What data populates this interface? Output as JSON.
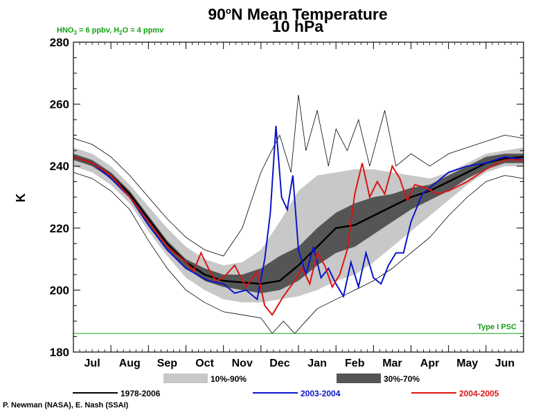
{
  "header": {
    "title_main": "90",
    "title_deg": "o",
    "title_rest": "N Mean Temperature",
    "subtitle": "10 hPa",
    "chem_note": {
      "part1": "HNO",
      "sub1": "3",
      "part2": " = 6 ppbv, H",
      "sub2": "2",
      "part3": "O = 4 ppmv"
    }
  },
  "credit": "P. Newman (NASA), E. Nash (SSAI)",
  "colors": {
    "band_10_90": "#c8c8c8",
    "band_30_70": "#555555",
    "climatology": "#000000",
    "series_2003_2004": "#0a14c8",
    "series_2004_2005": "#dc1414",
    "psc_line": "#12a012"
  },
  "chart_data": {
    "type": "line",
    "title": "90°N Mean Temperature",
    "subtitle": "10 hPa",
    "ylabel": "K",
    "xlabel": "",
    "ylim": [
      180,
      280
    ],
    "yticks": [
      180,
      200,
      220,
      240,
      260,
      280
    ],
    "x_categories": [
      "Jul",
      "Aug",
      "Sep",
      "Oct",
      "Nov",
      "Dec",
      "Jan",
      "Feb",
      "Mar",
      "Apr",
      "May",
      "Jun"
    ],
    "x_unit": "month index (0 = start of Jul, 12 = end of Jun)",
    "reference_line": {
      "label": "Type I PSC",
      "value": 186
    },
    "legend": [
      {
        "label": "10%-90%",
        "kind": "band"
      },
      {
        "label": "30%-70%",
        "kind": "band"
      },
      {
        "label": "1978-2006",
        "kind": "line"
      },
      {
        "label": "2003-2004",
        "kind": "line"
      },
      {
        "label": "2004-2005",
        "kind": "line"
      }
    ],
    "climatology_mean": {
      "name": "1978-2006",
      "x": [
        0,
        0.5,
        1,
        1.5,
        2,
        2.5,
        3,
        3.5,
        4,
        4.5,
        5,
        5.5,
        6,
        6.5,
        7,
        7.5,
        8,
        8.5,
        9,
        9.5,
        10,
        10.5,
        11,
        11.5,
        12
      ],
      "y": [
        243,
        241,
        237,
        231,
        223,
        215,
        209,
        205,
        203,
        202.5,
        202,
        203,
        208,
        214,
        220,
        221,
        224,
        227,
        230,
        232,
        235,
        238,
        241,
        242.5,
        243
      ]
    },
    "band_10_90": {
      "x": [
        0,
        0.5,
        1,
        1.5,
        2,
        2.5,
        3,
        3.5,
        4,
        4.5,
        5,
        5.5,
        6,
        6.5,
        7,
        7.5,
        8,
        8.5,
        9,
        9.5,
        10,
        10.5,
        11,
        11.5,
        12
      ],
      "low": [
        240,
        238,
        234,
        228,
        219,
        211,
        204,
        200,
        197,
        196,
        196,
        197,
        198,
        200,
        203,
        205,
        209,
        214,
        219,
        224,
        229,
        234,
        238,
        240,
        240
      ],
      "high": [
        246,
        244,
        240,
        234,
        227,
        220,
        214,
        210,
        208,
        209,
        213,
        222,
        232,
        237,
        238,
        239,
        239,
        238,
        237,
        236,
        238,
        241,
        244,
        245,
        246
      ]
    },
    "band_30_70": {
      "x": [
        0,
        0.5,
        1,
        1.5,
        2,
        2.5,
        3,
        3.5,
        4,
        4.5,
        5,
        5.5,
        6,
        6.5,
        7,
        7.5,
        8,
        8.5,
        9,
        9.5,
        10,
        10.5,
        11,
        11.5,
        12
      ],
      "low": [
        242,
        240,
        236,
        230,
        221,
        213,
        207,
        203,
        201,
        200,
        199,
        200,
        203,
        208,
        212,
        214,
        218,
        222,
        226,
        229,
        232,
        236,
        239,
        241,
        241
      ],
      "high": [
        244,
        242,
        238,
        232,
        224,
        216,
        210,
        207,
        205,
        205,
        207,
        211,
        214,
        220,
        225,
        228,
        230,
        231,
        233,
        234,
        237,
        240,
        243,
        244,
        244
      ]
    },
    "extreme_max": {
      "x": [
        0,
        0.5,
        1,
        1.5,
        2,
        2.5,
        3,
        3.5,
        4,
        4.5,
        5,
        5.2,
        5.5,
        5.8,
        6,
        6.2,
        6.5,
        6.8,
        7,
        7.3,
        7.6,
        7.9,
        8.3,
        8.6,
        9,
        9.5,
        10,
        10.5,
        11,
        11.5,
        12
      ],
      "y": [
        249,
        247,
        243,
        237,
        230,
        223,
        217,
        213,
        211,
        220,
        238,
        243,
        250,
        238,
        263,
        245,
        258,
        240,
        252,
        245,
        255,
        240,
        258,
        240,
        244,
        240,
        244,
        246,
        248,
        250,
        249
      ]
    },
    "extreme_min": {
      "x": [
        0,
        0.5,
        1,
        1.5,
        2,
        2.5,
        3,
        3.5,
        4,
        4.5,
        5,
        5.3,
        5.6,
        5.9,
        6.2,
        6.5,
        7,
        7.5,
        8,
        8.5,
        9,
        9.5,
        10,
        10.5,
        11,
        11.5,
        12
      ],
      "y": [
        238,
        236,
        232,
        226,
        216,
        207,
        200,
        196,
        193,
        192,
        191,
        186,
        190,
        186,
        190,
        194,
        197,
        200,
        203,
        207,
        212,
        217,
        224,
        230,
        235,
        237,
        236
      ]
    },
    "series_2003_2004": {
      "name": "2003-2004",
      "x": [
        0,
        0.5,
        1,
        1.5,
        2,
        2.5,
        3,
        3.3,
        3.6,
        4,
        4.3,
        4.6,
        4.9,
        5.1,
        5.25,
        5.4,
        5.55,
        5.7,
        5.85,
        6,
        6.2,
        6.4,
        6.6,
        6.8,
        7,
        7.2,
        7.4,
        7.6,
        7.8,
        8,
        8.2,
        8.4,
        8.6,
        8.8,
        9,
        9.3,
        9.6,
        10,
        10.5,
        11,
        11.5,
        12
      ],
      "y": [
        243,
        241,
        236,
        230,
        221,
        213,
        207,
        205,
        203,
        202,
        199,
        200,
        197,
        210,
        225,
        253,
        230,
        226,
        237,
        213,
        205,
        214,
        204,
        207,
        202,
        198,
        209,
        201,
        212,
        204,
        202,
        208,
        212,
        212,
        222,
        231,
        234,
        238,
        240,
        241,
        243,
        242
      ]
    },
    "series_2004_2005": {
      "name": "2004-2005",
      "x": [
        0,
        0.5,
        1,
        1.5,
        2,
        2.5,
        3,
        3.2,
        3.4,
        3.6,
        3.8,
        4,
        4.3,
        4.6,
        4.9,
        5.1,
        5.3,
        5.6,
        5.9,
        6.1,
        6.3,
        6.5,
        6.7,
        6.9,
        7.1,
        7.3,
        7.5,
        7.7,
        7.9,
        8.1,
        8.3,
        8.5,
        8.7,
        8.9,
        9.1,
        9.4,
        9.7,
        10,
        10.5,
        11,
        11.5,
        12
      ],
      "y": [
        243,
        241,
        237,
        230,
        222,
        214,
        209,
        206,
        212,
        207,
        203,
        204,
        208,
        201,
        206,
        195,
        192,
        198,
        203,
        207,
        202,
        212,
        208,
        201,
        205,
        213,
        231,
        241,
        230,
        235,
        231,
        240,
        236,
        229,
        234,
        233,
        231,
        232,
        235,
        239,
        242,
        242
      ]
    }
  }
}
